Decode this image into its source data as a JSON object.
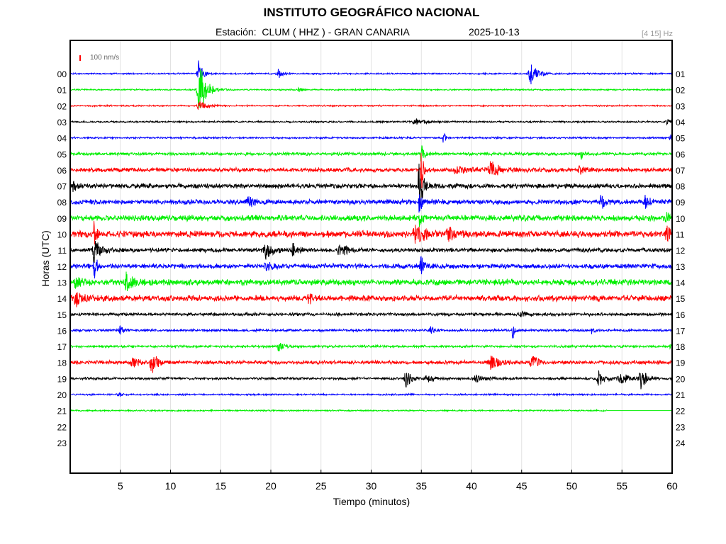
{
  "header": {
    "title": "INSTITUTO GEOGRÁFICO NACIONAL",
    "station_line": "Estación:  CLUM ( HHZ ) - GRAN CANARIA",
    "date": "2025-10-13",
    "band": "[4 15] Hz"
  },
  "scale_label": "100 nm/s",
  "colors": {
    "blue": "#0000ff",
    "green": "#00ee00",
    "red": "#ff0000",
    "black": "#000000",
    "grid": "#e2e2e2"
  },
  "chart_data": {
    "type": "line",
    "title": "INSTITUTO GEOGRÁFICO NACIONAL",
    "xlabel": "Tiempo (minutos)",
    "ylabel": "Horas (UTC)",
    "xlim": [
      0,
      60
    ],
    "x_ticks": [
      "5",
      "10",
      "15",
      "20",
      "25",
      "30",
      "35",
      "40",
      "45",
      "50",
      "55",
      "60"
    ],
    "y_ticks_left": [
      "00",
      "01",
      "02",
      "03",
      "04",
      "05",
      "06",
      "07",
      "08",
      "09",
      "10",
      "11",
      "12",
      "13",
      "14",
      "15",
      "16",
      "17",
      "18",
      "19",
      "20",
      "21",
      "22",
      "23"
    ],
    "y_ticks_right": [
      "01",
      "02",
      "03",
      "04",
      "05",
      "06",
      "07",
      "08",
      "09",
      "10",
      "11",
      "12",
      "13",
      "14",
      "15",
      "16",
      "17",
      "18",
      "19",
      "20",
      "21",
      "22",
      "23",
      "24"
    ],
    "grid": true,
    "series": [
      {
        "hour": "00",
        "color": "blue",
        "noise": 1.2,
        "end": 60,
        "events": [
          [
            12.8,
            0.6,
            20
          ],
          [
            20.7,
            0.6,
            8
          ],
          [
            45.9,
            1.0,
            16
          ]
        ]
      },
      {
        "hour": "01",
        "color": "green",
        "noise": 1.2,
        "end": 60,
        "events": [
          [
            12.9,
            1.0,
            40
          ],
          [
            22.8,
            0.5,
            4
          ]
        ]
      },
      {
        "hour": "02",
        "color": "red",
        "noise": 1.2,
        "end": 60,
        "events": [
          [
            12.9,
            1.0,
            8
          ]
        ]
      },
      {
        "hour": "03",
        "color": "black",
        "noise": 1.4,
        "end": 60,
        "events": [
          [
            34.5,
            2.0,
            3
          ],
          [
            59.5,
            0.5,
            3
          ]
        ]
      },
      {
        "hour": "04",
        "color": "blue",
        "noise": 1.5,
        "end": 60,
        "events": [
          [
            37.2,
            0.3,
            9
          ],
          [
            59.8,
            0.3,
            6
          ]
        ]
      },
      {
        "hour": "05",
        "color": "green",
        "noise": 2.5,
        "end": 60,
        "events": [
          [
            50.9,
            0.4,
            8
          ],
          [
            35.0,
            0.4,
            14
          ]
        ]
      },
      {
        "hour": "06",
        "color": "red",
        "noise": 3.5,
        "end": 60,
        "events": [
          [
            35.0,
            0.3,
            34
          ],
          [
            41.9,
            1.2,
            12
          ],
          [
            38.5,
            1.5,
            6
          ],
          [
            50.8,
            0.8,
            5
          ]
        ]
      },
      {
        "hour": "07",
        "color": "black",
        "noise": 4.0,
        "end": 60,
        "events": [
          [
            34.8,
            0.7,
            32
          ],
          [
            0.3,
            0.5,
            7
          ]
        ]
      },
      {
        "hour": "08",
        "color": "blue",
        "noise": 4.0,
        "end": 60,
        "events": [
          [
            17.8,
            0.8,
            8
          ],
          [
            52.9,
            0.6,
            12
          ],
          [
            57.3,
            0.6,
            10
          ],
          [
            34.8,
            0.4,
            16
          ]
        ]
      },
      {
        "hour": "09",
        "color": "green",
        "noise": 5.0,
        "end": 60,
        "events": [
          [
            34.8,
            0.4,
            10
          ],
          [
            59.4,
            0.4,
            8
          ]
        ]
      },
      {
        "hour": "10",
        "color": "red",
        "noise": 5.5,
        "end": 60,
        "events": [
          [
            2.4,
            0.3,
            22
          ],
          [
            34.5,
            1.2,
            14
          ],
          [
            37.7,
            1.0,
            12
          ],
          [
            59.5,
            0.6,
            10
          ]
        ]
      },
      {
        "hour": "11",
        "color": "black",
        "noise": 3.5,
        "end": 60,
        "events": [
          [
            2.4,
            0.8,
            18
          ],
          [
            19.5,
            0.8,
            14
          ],
          [
            22.2,
            0.8,
            10
          ],
          [
            26.9,
            0.8,
            14
          ]
        ]
      },
      {
        "hour": "12",
        "color": "blue",
        "noise": 4.0,
        "end": 60,
        "events": [
          [
            2.4,
            0.4,
            18
          ],
          [
            35.0,
            0.6,
            12
          ],
          [
            19.5,
            0.8,
            6
          ]
        ]
      },
      {
        "hour": "13",
        "color": "green",
        "noise": 5.0,
        "end": 60,
        "events": [
          [
            5.6,
            0.8,
            14
          ],
          [
            0.5,
            0.8,
            8
          ]
        ]
      },
      {
        "hour": "14",
        "color": "red",
        "noise": 5.0,
        "end": 60,
        "events": [
          [
            0.6,
            1.0,
            10
          ],
          [
            23.8,
            0.7,
            6
          ]
        ]
      },
      {
        "hour": "15",
        "color": "black",
        "noise": 2.5,
        "end": 60,
        "events": [
          [
            45.0,
            1.0,
            4
          ]
        ]
      },
      {
        "hour": "16",
        "color": "blue",
        "noise": 2.0,
        "end": 60,
        "events": [
          [
            5.0,
            0.4,
            8
          ],
          [
            44.1,
            0.2,
            18
          ],
          [
            35.9,
            0.6,
            8
          ],
          [
            52.0,
            0.3,
            5
          ]
        ]
      },
      {
        "hour": "17",
        "color": "green",
        "noise": 2.0,
        "end": 60,
        "events": [
          [
            20.8,
            0.6,
            8
          ],
          [
            59.8,
            0.3,
            6
          ]
        ]
      },
      {
        "hour": "18",
        "color": "red",
        "noise": 3.0,
        "end": 60,
        "events": [
          [
            8.1,
            0.8,
            16
          ],
          [
            6.2,
            1.0,
            7
          ],
          [
            42.0,
            1.2,
            10
          ],
          [
            46.0,
            0.8,
            12
          ]
        ]
      },
      {
        "hour": "19",
        "color": "black",
        "noise": 2.0,
        "end": 60,
        "events": [
          [
            33.5,
            0.8,
            12
          ],
          [
            35.6,
            0.8,
            6
          ],
          [
            40.5,
            1.2,
            5
          ],
          [
            52.7,
            0.8,
            12
          ],
          [
            56.9,
            0.8,
            16
          ],
          [
            55.0,
            1.5,
            6
          ]
        ]
      },
      {
        "hour": "20",
        "color": "blue",
        "noise": 1.4,
        "end": 60,
        "events": [
          [
            4.8,
            0.4,
            4
          ]
        ]
      },
      {
        "hour": "21",
        "color": "green",
        "noise": 1.2,
        "end": 53.5,
        "events": []
      },
      {
        "hour": "22",
        "color": "none",
        "noise": 0,
        "end": 0,
        "events": []
      },
      {
        "hour": "23",
        "color": "none",
        "noise": 0,
        "end": 0,
        "events": []
      }
    ]
  }
}
